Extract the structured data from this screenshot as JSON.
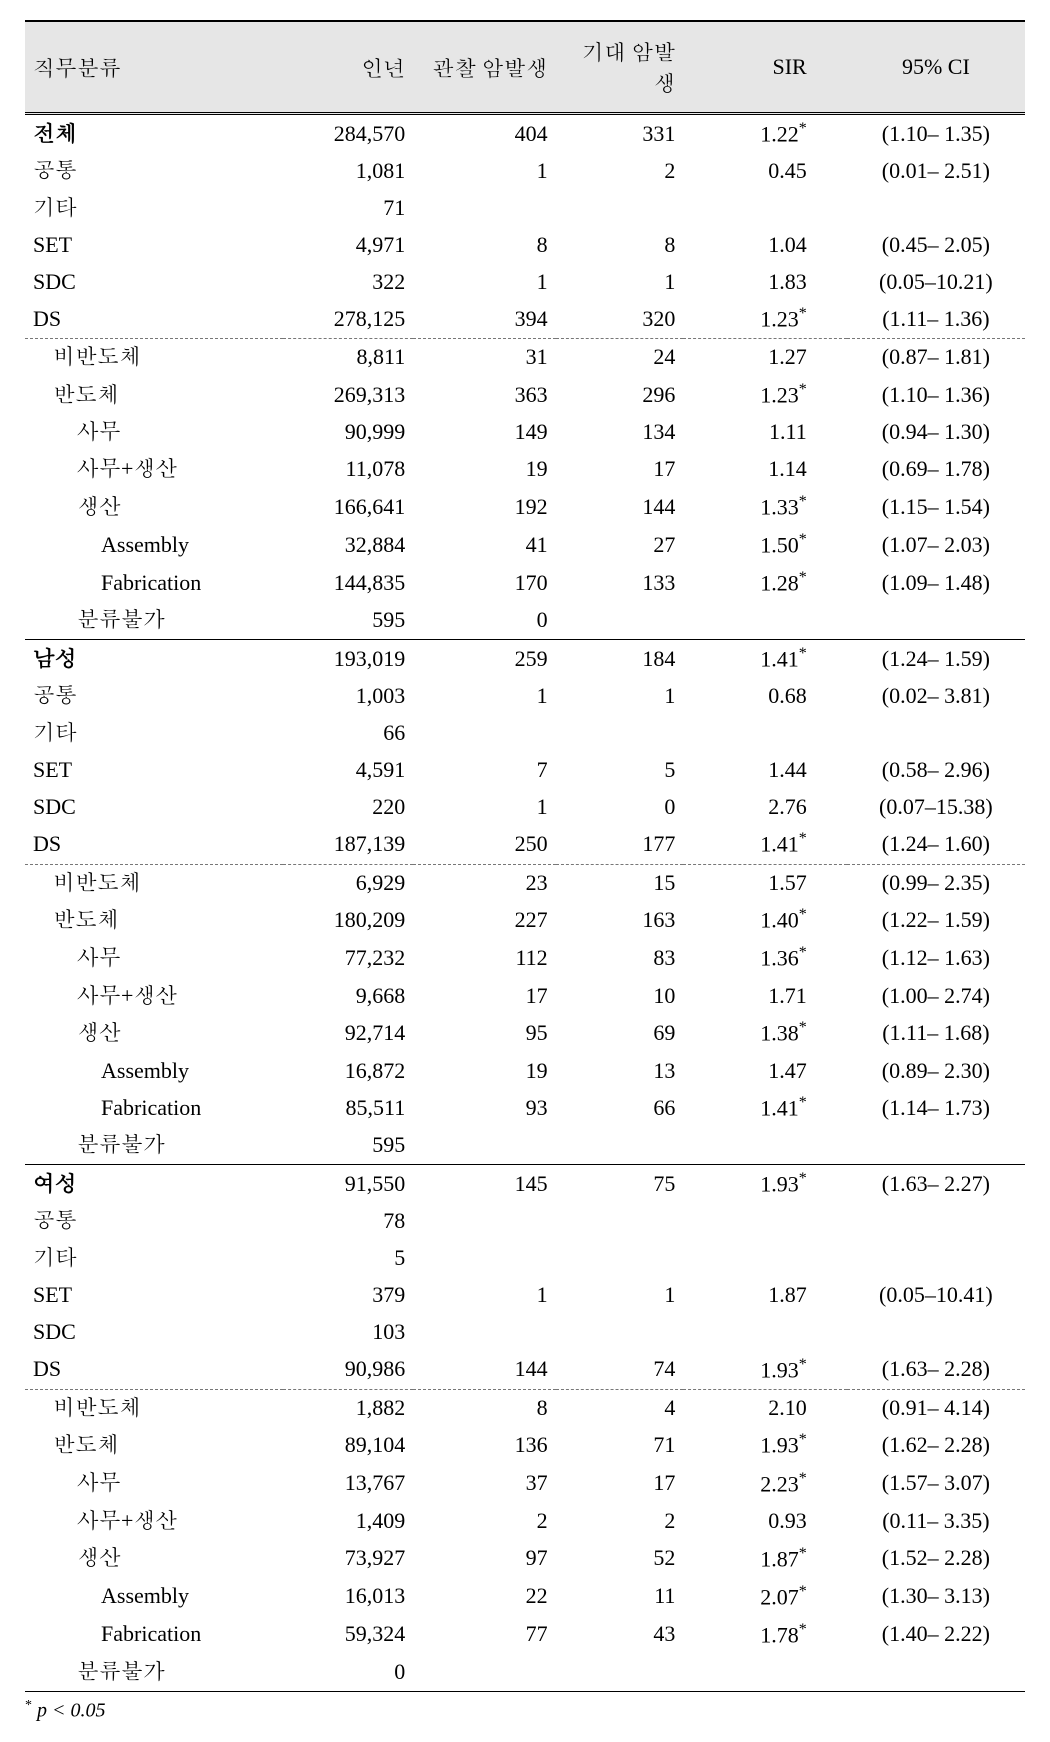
{
  "headers": {
    "c0": "직무분류",
    "c1": "인년",
    "c2": "관찰 암발생",
    "c3": "기대 암발생",
    "c4": "SIR",
    "c5": "95% CI"
  },
  "footnote": {
    "star": "*",
    "text": " p < 0.05"
  },
  "rows": [
    {
      "label": "전체",
      "indent": 0,
      "bold": true,
      "border": "none",
      "py": "284,570",
      "obs": "404",
      "exp": "331",
      "sir": "1.22",
      "star": true,
      "ci": "(1.10– 1.35)"
    },
    {
      "label": "공통",
      "indent": 0,
      "bold": false,
      "border": "none",
      "py": "1,081",
      "obs": "1",
      "exp": "2",
      "sir": "0.45",
      "star": false,
      "ci": "(0.01– 2.51)"
    },
    {
      "label": "기타",
      "indent": 0,
      "bold": false,
      "border": "none",
      "py": "71",
      "obs": "",
      "exp": "",
      "sir": "",
      "star": false,
      "ci": ""
    },
    {
      "label": "SET",
      "indent": 0,
      "bold": false,
      "border": "none",
      "py": "4,971",
      "obs": "8",
      "exp": "8",
      "sir": "1.04",
      "star": false,
      "ci": "(0.45– 2.05)"
    },
    {
      "label": "SDC",
      "indent": 0,
      "bold": false,
      "border": "none",
      "py": "322",
      "obs": "1",
      "exp": "1",
      "sir": "1.83",
      "star": false,
      "ci": "(0.05–10.21)"
    },
    {
      "label": "DS",
      "indent": 0,
      "bold": false,
      "border": "none",
      "py": "278,125",
      "obs": "394",
      "exp": "320",
      "sir": "1.23",
      "star": true,
      "ci": "(1.11– 1.36)"
    },
    {
      "label": "비반도체",
      "indent": 1,
      "bold": false,
      "border": "dashed",
      "py": "8,811",
      "obs": "31",
      "exp": "24",
      "sir": "1.27",
      "star": false,
      "ci": "(0.87– 1.81)"
    },
    {
      "label": "반도체",
      "indent": 1,
      "bold": false,
      "border": "none",
      "py": "269,313",
      "obs": "363",
      "exp": "296",
      "sir": "1.23",
      "star": true,
      "ci": "(1.10– 1.36)"
    },
    {
      "label": "사무",
      "indent": 2,
      "bold": false,
      "border": "none",
      "py": "90,999",
      "obs": "149",
      "exp": "134",
      "sir": "1.11",
      "star": false,
      "ci": "(0.94– 1.30)"
    },
    {
      "label": "사무+생산",
      "indent": 2,
      "bold": false,
      "border": "none",
      "py": "11,078",
      "obs": "19",
      "exp": "17",
      "sir": "1.14",
      "star": false,
      "ci": "(0.69– 1.78)"
    },
    {
      "label": "생산",
      "indent": 2,
      "bold": false,
      "border": "none",
      "py": "166,641",
      "obs": "192",
      "exp": "144",
      "sir": "1.33",
      "star": true,
      "ci": "(1.15– 1.54)"
    },
    {
      "label": "Assembly",
      "indent": 3,
      "bold": false,
      "border": "none",
      "py": "32,884",
      "obs": "41",
      "exp": "27",
      "sir": "1.50",
      "star": true,
      "ci": "(1.07– 2.03)"
    },
    {
      "label": "Fabrication",
      "indent": 3,
      "bold": false,
      "border": "none",
      "py": "144,835",
      "obs": "170",
      "exp": "133",
      "sir": "1.28",
      "star": true,
      "ci": "(1.09– 1.48)"
    },
    {
      "label": "분류불가",
      "indent": 2,
      "bold": false,
      "border": "none",
      "py": "595",
      "obs": "0",
      "exp": "",
      "sir": "",
      "star": false,
      "ci": ""
    },
    {
      "label": "남성",
      "indent": 0,
      "bold": true,
      "border": "solid",
      "py": "193,019",
      "obs": "259",
      "exp": "184",
      "sir": "1.41",
      "star": true,
      "ci": "(1.24– 1.59)"
    },
    {
      "label": "공통",
      "indent": 0,
      "bold": false,
      "border": "none",
      "py": "1,003",
      "obs": "1",
      "exp": "1",
      "sir": "0.68",
      "star": false,
      "ci": "(0.02– 3.81)"
    },
    {
      "label": "기타",
      "indent": 0,
      "bold": false,
      "border": "none",
      "py": "66",
      "obs": "",
      "exp": "",
      "sir": "",
      "star": false,
      "ci": ""
    },
    {
      "label": "SET",
      "indent": 0,
      "bold": false,
      "border": "none",
      "py": "4,591",
      "obs": "7",
      "exp": "5",
      "sir": "1.44",
      "star": false,
      "ci": "(0.58– 2.96)"
    },
    {
      "label": "SDC",
      "indent": 0,
      "bold": false,
      "border": "none",
      "py": "220",
      "obs": "1",
      "exp": "0",
      "sir": "2.76",
      "star": false,
      "ci": "(0.07–15.38)"
    },
    {
      "label": "DS",
      "indent": 0,
      "bold": false,
      "border": "none",
      "py": "187,139",
      "obs": "250",
      "exp": "177",
      "sir": "1.41",
      "star": true,
      "ci": "(1.24– 1.60)"
    },
    {
      "label": "비반도체",
      "indent": 1,
      "bold": false,
      "border": "dashed",
      "py": "6,929",
      "obs": "23",
      "exp": "15",
      "sir": "1.57",
      "star": false,
      "ci": "(0.99– 2.35)"
    },
    {
      "label": "반도체",
      "indent": 1,
      "bold": false,
      "border": "none",
      "py": "180,209",
      "obs": "227",
      "exp": "163",
      "sir": "1.40",
      "star": true,
      "ci": "(1.22– 1.59)"
    },
    {
      "label": "사무",
      "indent": 2,
      "bold": false,
      "border": "none",
      "py": "77,232",
      "obs": "112",
      "exp": "83",
      "sir": "1.36",
      "star": true,
      "ci": "(1.12– 1.63)"
    },
    {
      "label": "사무+생산",
      "indent": 2,
      "bold": false,
      "border": "none",
      "py": "9,668",
      "obs": "17",
      "exp": "10",
      "sir": "1.71",
      "star": false,
      "ci": "(1.00– 2.74)"
    },
    {
      "label": "생산",
      "indent": 2,
      "bold": false,
      "border": "none",
      "py": "92,714",
      "obs": "95",
      "exp": "69",
      "sir": "1.38",
      "star": true,
      "ci": "(1.11– 1.68)"
    },
    {
      "label": "Assembly",
      "indent": 3,
      "bold": false,
      "border": "none",
      "py": "16,872",
      "obs": "19",
      "exp": "13",
      "sir": "1.47",
      "star": false,
      "ci": "(0.89– 2.30)"
    },
    {
      "label": "Fabrication",
      "indent": 3,
      "bold": false,
      "border": "none",
      "py": "85,511",
      "obs": "93",
      "exp": "66",
      "sir": "1.41",
      "star": true,
      "ci": "(1.14– 1.73)"
    },
    {
      "label": "분류불가",
      "indent": 2,
      "bold": false,
      "border": "none",
      "py": "595",
      "obs": "",
      "exp": "",
      "sir": "",
      "star": false,
      "ci": ""
    },
    {
      "label": "여성",
      "indent": 0,
      "bold": true,
      "border": "solid",
      "py": "91,550",
      "obs": "145",
      "exp": "75",
      "sir": "1.93",
      "star": true,
      "ci": "(1.63– 2.27)"
    },
    {
      "label": "공통",
      "indent": 0,
      "bold": false,
      "border": "none",
      "py": "78",
      "obs": "",
      "exp": "",
      "sir": "",
      "star": false,
      "ci": ""
    },
    {
      "label": "기타",
      "indent": 0,
      "bold": false,
      "border": "none",
      "py": "5",
      "obs": "",
      "exp": "",
      "sir": "",
      "star": false,
      "ci": ""
    },
    {
      "label": "SET",
      "indent": 0,
      "bold": false,
      "border": "none",
      "py": "379",
      "obs": "1",
      "exp": "1",
      "sir": "1.87",
      "star": false,
      "ci": "(0.05–10.41)"
    },
    {
      "label": "SDC",
      "indent": 0,
      "bold": false,
      "border": "none",
      "py": "103",
      "obs": "",
      "exp": "",
      "sir": "",
      "star": false,
      "ci": ""
    },
    {
      "label": "DS",
      "indent": 0,
      "bold": false,
      "border": "none",
      "py": "90,986",
      "obs": "144",
      "exp": "74",
      "sir": "1.93",
      "star": true,
      "ci": "(1.63– 2.28)"
    },
    {
      "label": "비반도체",
      "indent": 1,
      "bold": false,
      "border": "dashed",
      "py": "1,882",
      "obs": "8",
      "exp": "4",
      "sir": "2.10",
      "star": false,
      "ci": "(0.91– 4.14)"
    },
    {
      "label": "반도체",
      "indent": 1,
      "bold": false,
      "border": "none",
      "py": "89,104",
      "obs": "136",
      "exp": "71",
      "sir": "1.93",
      "star": true,
      "ci": "(1.62– 2.28)"
    },
    {
      "label": "사무",
      "indent": 2,
      "bold": false,
      "border": "none",
      "py": "13,767",
      "obs": "37",
      "exp": "17",
      "sir": "2.23",
      "star": true,
      "ci": "(1.57– 3.07)"
    },
    {
      "label": "사무+생산",
      "indent": 2,
      "bold": false,
      "border": "none",
      "py": "1,409",
      "obs": "2",
      "exp": "2",
      "sir": "0.93",
      "star": false,
      "ci": "(0.11– 3.35)"
    },
    {
      "label": "생산",
      "indent": 2,
      "bold": false,
      "border": "none",
      "py": "73,927",
      "obs": "97",
      "exp": "52",
      "sir": "1.87",
      "star": true,
      "ci": "(1.52– 2.28)"
    },
    {
      "label": "Assembly",
      "indent": 3,
      "bold": false,
      "border": "none",
      "py": "16,013",
      "obs": "22",
      "exp": "11",
      "sir": "2.07",
      "star": true,
      "ci": "(1.30– 3.13)"
    },
    {
      "label": "Fabrication",
      "indent": 3,
      "bold": false,
      "border": "none",
      "py": "59,324",
      "obs": "77",
      "exp": "43",
      "sir": "1.78",
      "star": true,
      "ci": "(1.40– 2.22)"
    },
    {
      "label": "분류불가",
      "indent": 2,
      "bold": false,
      "border": "none",
      "py": "0",
      "obs": "",
      "exp": "",
      "sir": "",
      "star": false,
      "ci": ""
    }
  ]
}
